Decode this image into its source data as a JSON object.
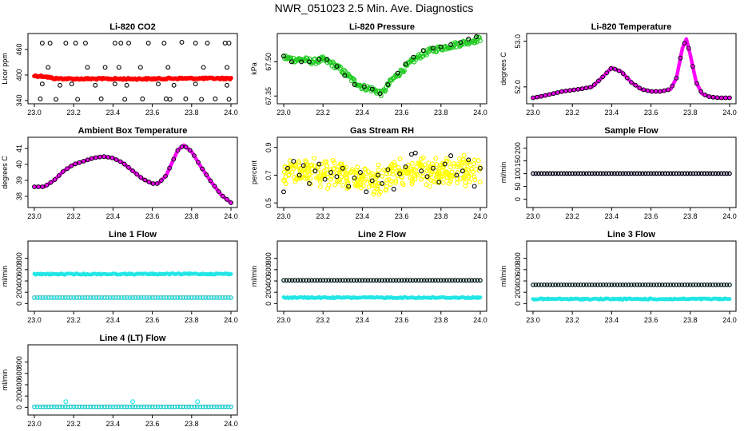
{
  "page": {
    "title": "NWR_051023  2.5 Min. Ave. Diagnostics"
  },
  "colors": {
    "black": "#000000",
    "red": "#ff0000",
    "green": "#22cc22",
    "magenta": "#ff00ff",
    "yellow": "#ffff00",
    "cyan": "#22e6e6",
    "blue": "#00008b"
  },
  "chart_data": [
    {
      "id": "co2",
      "type": "scatter",
      "title": "Li-820 CO2",
      "ylabel": "Licor ppm",
      "xlim": [
        23.0,
        24.0
      ],
      "ylim": [
        340,
        490
      ],
      "xticks": [
        23.0,
        23.2,
        23.4,
        23.6,
        23.8,
        24.0
      ],
      "yticks": [
        340,
        400,
        460
      ],
      "xtick_labels": [
        "23.0",
        "23.2",
        "23.4",
        "23.6",
        "23.8",
        "24.0"
      ],
      "ytick_labels": [
        "340",
        "400",
        "460"
      ],
      "series": [
        {
          "name": "mean",
          "color": "red",
          "style": "thick-points",
          "x": [
            23.0,
            23.05,
            23.1,
            23.2,
            23.3,
            23.4,
            23.5,
            23.6,
            23.7,
            23.8,
            23.9,
            24.0
          ],
          "values": [
            398,
            397,
            392,
            391,
            391,
            391,
            391,
            391,
            392,
            392,
            392,
            392
          ]
        },
        {
          "name": "max",
          "color": "black",
          "style": "open-circle",
          "x": [
            23.04,
            23.08,
            23.16,
            23.21,
            23.26,
            23.41,
            23.44,
            23.48,
            23.58,
            23.66,
            23.75,
            23.82,
            23.88,
            23.97,
            23.99
          ],
          "values": [
            475,
            475,
            475,
            475,
            475,
            475,
            475,
            475,
            475,
            475,
            477,
            475,
            475,
            475,
            475
          ]
        },
        {
          "name": "upper",
          "color": "black",
          "style": "open-circle",
          "x": [
            23.07,
            23.27,
            23.36,
            23.43,
            23.54,
            23.68,
            23.86,
            23.98
          ],
          "values": [
            418,
            418,
            418,
            418,
            418,
            418,
            418,
            418
          ]
        },
        {
          "name": "lower",
          "color": "black",
          "style": "open-circle",
          "x": [
            23.04,
            23.13,
            23.19,
            23.31,
            23.41,
            23.47,
            23.63,
            23.71,
            23.82,
            23.98
          ],
          "values": [
            379,
            376,
            379,
            376,
            379,
            376,
            379,
            376,
            379,
            376
          ]
        },
        {
          "name": "min",
          "color": "black",
          "style": "open-circle",
          "x": [
            23.03,
            23.11,
            23.22,
            23.34,
            23.46,
            23.55,
            23.67,
            23.69,
            23.77,
            23.85,
            23.92,
            23.99
          ],
          "values": [
            344,
            343,
            343,
            344,
            343,
            344,
            344,
            343,
            344,
            343,
            344,
            343
          ]
        }
      ]
    },
    {
      "id": "pressure",
      "type": "scatter",
      "title": "Li-820 Pressure",
      "ylabel": "kPa",
      "xlim": [
        23.0,
        24.0
      ],
      "ylim": [
        67.33,
        67.61
      ],
      "xticks": [
        23.0,
        23.2,
        23.4,
        23.6,
        23.8,
        24.0
      ],
      "yticks": [
        67.35,
        67.5
      ],
      "xtick_labels": [
        "23.0",
        "23.2",
        "23.4",
        "23.6",
        "23.8",
        "24.0"
      ],
      "ytick_labels": [
        "67.35",
        "67.50"
      ],
      "series": [
        {
          "name": "pressure",
          "color": "green",
          "style": "dense-band",
          "spread": 0.012,
          "x": [
            23.0,
            23.05,
            23.1,
            23.15,
            23.2,
            23.25,
            23.3,
            23.35,
            23.4,
            23.45,
            23.5,
            23.55,
            23.6,
            23.65,
            23.7,
            23.75,
            23.8,
            23.85,
            23.9,
            23.95,
            24.0
          ],
          "values": [
            67.52,
            67.51,
            67.51,
            67.5,
            67.51,
            67.49,
            67.46,
            67.42,
            67.39,
            67.38,
            67.36,
            67.42,
            67.46,
            67.5,
            67.53,
            67.55,
            67.56,
            67.57,
            67.58,
            67.59,
            67.6
          ]
        },
        {
          "name": "samples",
          "color": "black",
          "style": "open-circle",
          "x": [
            23.0,
            23.04,
            23.09,
            23.13,
            23.18,
            23.22,
            23.27,
            23.31,
            23.36,
            23.41,
            23.45,
            23.49,
            23.53,
            23.58,
            23.62,
            23.66,
            23.71,
            23.76,
            23.8,
            23.85,
            23.9,
            23.94,
            23.98
          ],
          "values": [
            67.525,
            67.5,
            67.5,
            67.5,
            67.51,
            67.51,
            67.48,
            67.44,
            67.4,
            67.39,
            67.38,
            67.36,
            67.4,
            67.45,
            67.49,
            67.52,
            67.55,
            67.56,
            67.565,
            67.575,
            67.585,
            67.6,
            67.61
          ]
        }
      ]
    },
    {
      "id": "temperature",
      "type": "line",
      "title": "Li-820 Temperature",
      "ylabel": "degrees C",
      "xlim": [
        23.0,
        24.0
      ],
      "ylim": [
        51.7,
        53.1
      ],
      "xticks": [
        23.0,
        23.2,
        23.4,
        23.6,
        23.8,
        24.0
      ],
      "yticks": [
        52.0,
        53.0
      ],
      "xtick_labels": [
        "23.0",
        "23.2",
        "23.4",
        "23.6",
        "23.8",
        "24.0"
      ],
      "ytick_labels": [
        "52.0",
        "53.0"
      ],
      "series": [
        {
          "name": "temperature",
          "color": "magenta",
          "style": "thick-line-with-circles",
          "x": [
            23.0,
            23.05,
            23.1,
            23.15,
            23.2,
            23.25,
            23.3,
            23.35,
            23.4,
            23.45,
            23.5,
            23.55,
            23.6,
            23.65,
            23.7,
            23.73,
            23.76,
            23.78,
            23.8,
            23.83,
            23.86,
            23.9,
            23.95,
            24.0
          ],
          "values": [
            51.76,
            51.8,
            51.85,
            51.9,
            51.93,
            51.96,
            52.0,
            52.2,
            52.42,
            52.33,
            52.1,
            51.95,
            51.9,
            51.9,
            51.95,
            52.2,
            52.85,
            53.05,
            52.7,
            52.1,
            51.85,
            51.78,
            51.76,
            51.76
          ]
        }
      ]
    },
    {
      "id": "box-temperature",
      "type": "line",
      "title": "Ambient Box Temperature",
      "ylabel": "degrees C",
      "xlim": [
        23.0,
        24.0
      ],
      "ylim": [
        37.5,
        41.5
      ],
      "xticks": [
        23.0,
        23.2,
        23.4,
        23.6,
        23.8,
        24.0
      ],
      "yticks": [
        38,
        39,
        40,
        41
      ],
      "xtick_labels": [
        "23.0",
        "23.2",
        "23.4",
        "23.6",
        "23.8",
        "24.0"
      ],
      "ytick_labels": [
        "38",
        "39",
        "40",
        "41"
      ],
      "series": [
        {
          "name": "box-temperature",
          "color": "magenta",
          "style": "thick-line-with-circles",
          "x": [
            23.0,
            23.05,
            23.1,
            23.15,
            23.2,
            23.25,
            23.3,
            23.35,
            23.4,
            23.45,
            23.5,
            23.55,
            23.6,
            23.63,
            23.67,
            23.7,
            23.73,
            23.76,
            23.8,
            23.85,
            23.9,
            23.95,
            24.0
          ],
          "values": [
            38.6,
            38.6,
            39.0,
            39.6,
            40.0,
            40.2,
            40.4,
            40.5,
            40.4,
            40.1,
            39.6,
            39.1,
            38.8,
            38.8,
            39.3,
            40.1,
            40.9,
            41.2,
            40.8,
            39.8,
            38.9,
            38.1,
            37.6
          ]
        }
      ]
    },
    {
      "id": "rh",
      "type": "scatter",
      "title": "Gas Stream RH",
      "ylabel": "percent",
      "xlim": [
        23.0,
        24.0
      ],
      "ylim": [
        0.49,
        0.95
      ],
      "xticks": [
        23.0,
        23.2,
        23.4,
        23.6,
        23.8,
        24.0
      ],
      "yticks": [
        0.5,
        0.7,
        0.9
      ],
      "xtick_labels": [
        "23.0",
        "23.2",
        "23.4",
        "23.6",
        "23.8",
        "24.0"
      ],
      "ytick_labels": [
        "0.5",
        "0.7",
        "0.9"
      ],
      "series": [
        {
          "name": "rh",
          "color": "yellow",
          "style": "scatter-cloud",
          "spread": 0.09,
          "x": [
            23.0,
            23.1,
            23.2,
            23.3,
            23.4,
            23.5,
            23.6,
            23.7,
            23.8,
            23.9,
            24.0
          ],
          "values": [
            0.72,
            0.74,
            0.72,
            0.69,
            0.67,
            0.66,
            0.73,
            0.73,
            0.72,
            0.74,
            0.72
          ]
        },
        {
          "name": "samples",
          "color": "black",
          "style": "open-circle",
          "x": [
            23.0,
            23.02,
            23.05,
            23.08,
            23.1,
            23.13,
            23.16,
            23.18,
            23.21,
            23.24,
            23.27,
            23.3,
            23.33,
            23.36,
            23.39,
            23.42,
            23.45,
            23.48,
            23.5,
            23.53,
            23.56,
            23.59,
            23.62,
            23.65,
            23.67,
            23.7,
            23.73,
            23.76,
            23.79,
            23.82,
            23.85,
            23.88,
            23.91,
            23.94,
            23.97,
            24.0
          ],
          "values": [
            0.58,
            0.75,
            0.8,
            0.7,
            0.77,
            0.64,
            0.73,
            0.78,
            0.67,
            0.72,
            0.69,
            0.75,
            0.62,
            0.68,
            0.72,
            0.58,
            0.66,
            0.7,
            0.64,
            0.74,
            0.6,
            0.71,
            0.76,
            0.85,
            0.86,
            0.73,
            0.69,
            0.75,
            0.65,
            0.78,
            0.84,
            0.7,
            0.73,
            0.81,
            0.62,
            0.75
          ]
        }
      ]
    },
    {
      "id": "sample-flow",
      "type": "scatter",
      "title": "Sample Flow",
      "ylabel": "ml/min",
      "xlim": [
        23.0,
        24.0
      ],
      "ylim": [
        -20,
        230
      ],
      "xticks": [
        23.0,
        23.2,
        23.4,
        23.6,
        23.8,
        24.0
      ],
      "yticks": [
        0,
        50,
        100,
        150,
        200
      ],
      "xtick_labels": [
        "23.0",
        "23.2",
        "23.4",
        "23.6",
        "23.8",
        "24.0"
      ],
      "ytick_labels": [
        "0",
        "50",
        "100",
        "150",
        "200"
      ],
      "series": [
        {
          "name": "flow",
          "color": "blue",
          "style": "open-circle-row",
          "x": [
            23.0,
            24.0
          ],
          "values": [
            100,
            100
          ]
        },
        {
          "name": "flow-black",
          "color": "black",
          "style": "open-circle-row",
          "x": [
            23.0,
            24.0
          ],
          "values": [
            101,
            101
          ]
        }
      ]
    },
    {
      "id": "line1",
      "type": "scatter",
      "title": "Line 1 Flow",
      "ylabel": "ml/min",
      "xlim": [
        23.0,
        24.0
      ],
      "ylim": [
        -80,
        1050
      ],
      "xticks": [
        23.0,
        23.2,
        23.4,
        23.6,
        23.8,
        24.0
      ],
      "yticks": [
        0,
        200,
        400,
        600,
        800
      ],
      "xtick_labels": [
        "23.0",
        "23.2",
        "23.4",
        "23.6",
        "23.8",
        "24.0"
      ],
      "ytick_labels": [
        "0",
        "200",
        "400",
        "600",
        "800"
      ],
      "series": [
        {
          "name": "cyan-upper",
          "color": "cyan",
          "style": "dense-row",
          "x": [
            23.0,
            24.0
          ],
          "values": [
            520,
            525
          ]
        },
        {
          "name": "black-lower",
          "color": "black",
          "style": "open-circle-row",
          "x": [
            23.0,
            24.0
          ],
          "values": [
            105,
            105
          ]
        },
        {
          "name": "cyan-lower",
          "color": "cyan",
          "style": "open-circle-row",
          "x": [
            23.0,
            24.0
          ],
          "values": [
            103,
            103
          ]
        }
      ]
    },
    {
      "id": "line2",
      "type": "scatter",
      "title": "Line 2 Flow",
      "ylabel": "ml/min",
      "xlim": [
        23.0,
        24.0
      ],
      "ylim": [
        -80,
        1050
      ],
      "xticks": [
        23.0,
        23.2,
        23.4,
        23.6,
        23.8,
        24.0
      ],
      "yticks": [
        0,
        200,
        400,
        600,
        800
      ],
      "xtick_labels": [
        "23.0",
        "23.2",
        "23.4",
        "23.6",
        "23.8",
        "24.0"
      ],
      "ytick_labels": [
        "0",
        "200",
        "400",
        "600",
        "800"
      ],
      "series": [
        {
          "name": "cyan-upper",
          "color": "cyan",
          "style": "open-circle-row",
          "x": [
            23.0,
            24.0
          ],
          "values": [
            410,
            410
          ]
        },
        {
          "name": "black-upper",
          "color": "black",
          "style": "open-circle-row",
          "x": [
            23.0,
            24.0
          ],
          "values": [
            412,
            412
          ]
        },
        {
          "name": "cyan-lower",
          "color": "cyan",
          "style": "dense-row",
          "x": [
            23.0,
            24.0
          ],
          "values": [
            105,
            105
          ]
        }
      ]
    },
    {
      "id": "line3",
      "type": "scatter",
      "title": "Line 3 Flow",
      "ylabel": "ml/min",
      "xlim": [
        23.0,
        24.0
      ],
      "ylim": [
        -80,
        1050
      ],
      "xticks": [
        23.0,
        23.2,
        23.4,
        23.6,
        23.8,
        24.0
      ],
      "yticks": [
        0,
        200,
        400,
        600,
        800
      ],
      "xtick_labels": [
        "23.0",
        "23.2",
        "23.4",
        "23.6",
        "23.8",
        "24.0"
      ],
      "ytick_labels": [
        "0",
        "200",
        "400",
        "600",
        "800"
      ],
      "series": [
        {
          "name": "cyan-upper",
          "color": "cyan",
          "style": "open-circle-row",
          "x": [
            23.0,
            24.0
          ],
          "values": [
            330,
            330
          ]
        },
        {
          "name": "black-upper",
          "color": "black",
          "style": "open-circle-row",
          "x": [
            23.0,
            24.0
          ],
          "values": [
            332,
            332
          ]
        },
        {
          "name": "cyan-lower",
          "color": "cyan",
          "style": "dense-row",
          "x": [
            23.0,
            24.0
          ],
          "values": [
            80,
            80
          ]
        }
      ]
    },
    {
      "id": "line4",
      "type": "scatter",
      "title": "Line 4 (LT) Flow",
      "ylabel": "ml/min",
      "xlim": [
        23.0,
        24.0
      ],
      "ylim": [
        -80,
        1050
      ],
      "xticks": [
        23.0,
        23.2,
        23.4,
        23.6,
        23.8,
        24.0
      ],
      "yticks": [
        0,
        200,
        400,
        600,
        800
      ],
      "xtick_labels": [
        "23.0",
        "23.2",
        "23.4",
        "23.6",
        "23.8",
        "24.0"
      ],
      "ytick_labels": [
        "0",
        "200",
        "400",
        "600",
        "800"
      ],
      "series": [
        {
          "name": "black-row",
          "color": "black",
          "style": "open-circle-row",
          "x": [
            23.0,
            24.0
          ],
          "values": [
            10,
            10
          ]
        },
        {
          "name": "cyan-row",
          "color": "cyan",
          "style": "open-circle-row",
          "x": [
            23.0,
            24.0
          ],
          "values": [
            8,
            8
          ]
        },
        {
          "name": "cyan-spikes",
          "color": "cyan",
          "style": "open-circle",
          "x": [
            23.16,
            23.5,
            23.83
          ],
          "values": [
            100,
            100,
            100
          ]
        }
      ]
    }
  ]
}
